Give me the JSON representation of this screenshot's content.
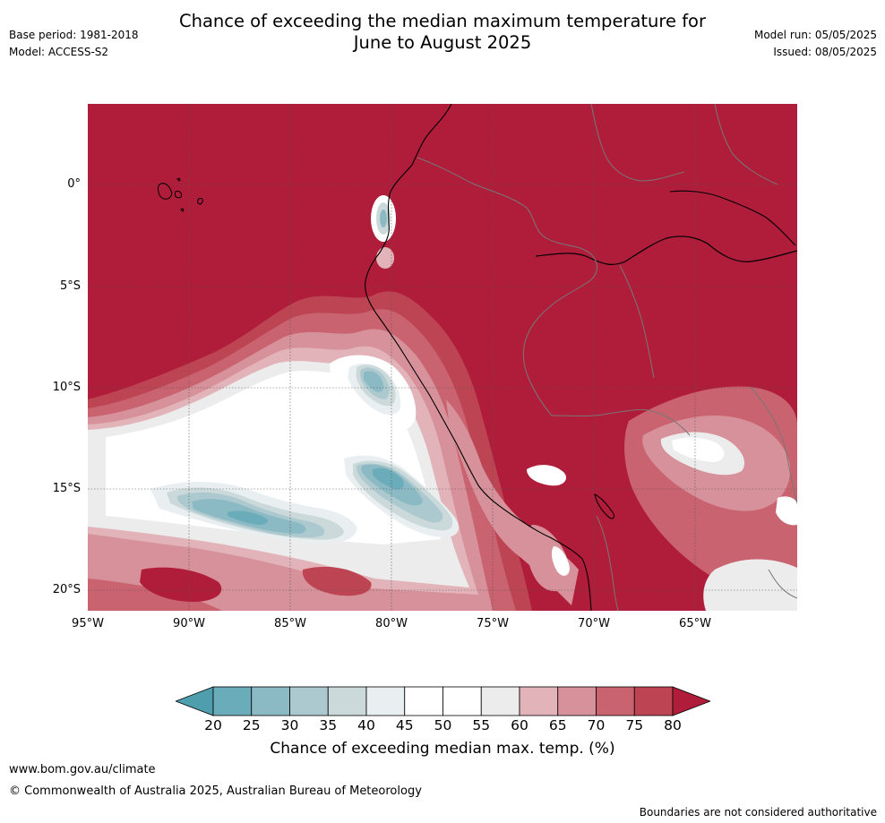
{
  "header": {
    "title_line1": "Chance of exceeding the median maximum temperature for",
    "title_line2": "June to August 2025",
    "base_period": "Base period: 1981-2018",
    "model": "Model: ACCESS-S2",
    "model_run": "Model run: 05/05/2025",
    "issued": "Issued: 08/05/2025"
  },
  "map": {
    "lat_labels": [
      "0°",
      "5°S",
      "10°S",
      "15°S",
      "20°S"
    ],
    "lat_values": [
      0,
      -5,
      -10,
      -15,
      -20
    ],
    "lon_labels": [
      "95°W",
      "90°W",
      "85°W",
      "80°W",
      "75°W",
      "70°W",
      "65°W"
    ],
    "lon_values": [
      -95,
      -90,
      -85,
      -80,
      -75,
      -70,
      -65
    ],
    "lon_range": [
      -95,
      -60
    ],
    "lat_range": [
      -21,
      4
    ]
  },
  "legend": {
    "ticks": [
      "20",
      "25",
      "30",
      "35",
      "40",
      "45",
      "50",
      "55",
      "60",
      "65",
      "70",
      "75",
      "80"
    ],
    "colors": [
      "#4f9eae",
      "#6aacb9",
      "#8cbac4",
      "#abc9ce",
      "#ccd9da",
      "#e9eff1",
      "#ffffff",
      "#ffffff",
      "#ececec",
      "#e2b4ba",
      "#d6919a",
      "#c9636f",
      "#bd4553",
      "#b01d3a"
    ],
    "label": "Chance of exceeding median max. temp. (%)"
  },
  "footer": {
    "url": "www.bom.gov.au/climate",
    "copyright": "© Commonwealth of Australia 2025, Australian Bureau of Meteorology",
    "disclaimer": "Boundaries are not considered authoritative"
  }
}
